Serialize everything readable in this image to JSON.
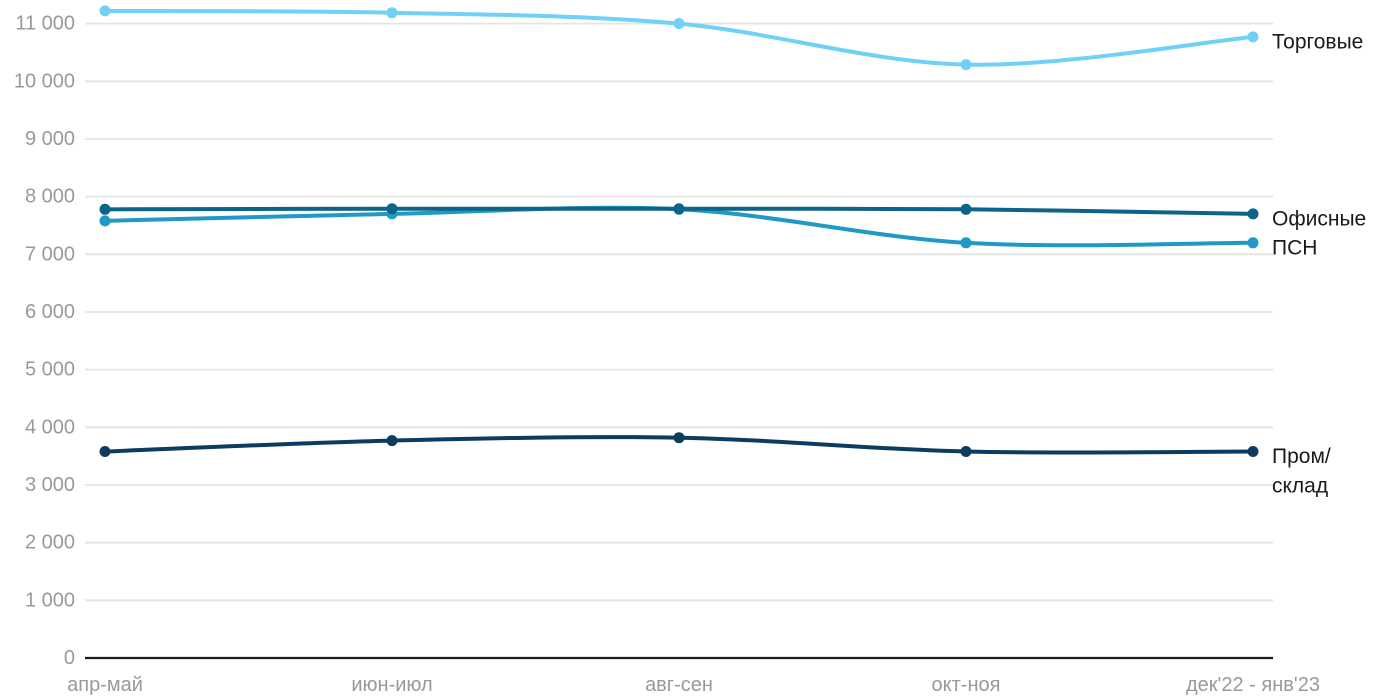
{
  "chart_data": {
    "type": "line",
    "title": "",
    "xlabel": "",
    "ylabel": "",
    "grid": "horizontal",
    "legend_position": "right-of-line-end",
    "ylim": [
      0,
      11400
    ],
    "categories": [
      "апр-май",
      "июн-июл",
      "авг-сен",
      "окт-ноя",
      "дек'22 - янв'23"
    ],
    "y_ticks": [
      0,
      1000,
      2000,
      3000,
      4000,
      5000,
      6000,
      7000,
      8000,
      9000,
      10000,
      11000
    ],
    "y_tick_labels": [
      "0",
      "1 000",
      "2 000",
      "3 000",
      "4 000",
      "5 000",
      "6 000",
      "7 000",
      "8 000",
      "9 000",
      "10 000",
      "11 000"
    ],
    "series": [
      {
        "name": "Торговые",
        "key": "trade",
        "color": "#6FD1F5",
        "values": [
          11220,
          11190,
          11000,
          10290,
          10770
        ],
        "label_lines": [
          "Торговые"
        ]
      },
      {
        "name": "ПСН",
        "key": "psn",
        "color": "#2199C6",
        "values": [
          7580,
          7700,
          7780,
          7200,
          7200
        ],
        "label_lines": [
          "ПСН"
        ]
      },
      {
        "name": "Офисные",
        "key": "office",
        "color": "#0E6488",
        "values": [
          7780,
          7790,
          7790,
          7780,
          7700
        ],
        "label_lines": [
          "Офисные"
        ]
      },
      {
        "name": "Пром/склад",
        "key": "industrial-warehouse",
        "color": "#0D3C5F",
        "values": [
          3580,
          3770,
          3820,
          3580,
          3580
        ],
        "label_lines": [
          "Пром/",
          "склад"
        ]
      }
    ]
  },
  "colors": {
    "background": "#FFFFFF",
    "grid": "#E4E4E4",
    "axis": "#1A1A1A",
    "tick_label": "#999999",
    "series_label": "#1A1A1A"
  }
}
